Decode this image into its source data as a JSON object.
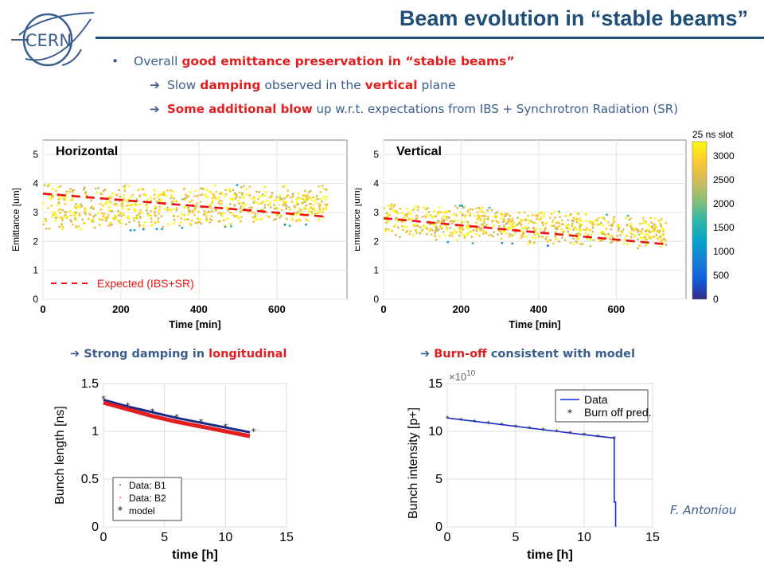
{
  "slide": {
    "title": "Beam evolution in “stable beams”",
    "logo_text": "CERN",
    "author": "F. Antoniou"
  },
  "bullets": {
    "main": {
      "pre": "Overall ",
      "hl": "good emittance preservation in “stable beams”",
      "post": ""
    },
    "sub1": {
      "a": "Slow ",
      "b": "damping",
      "c": " observed in the ",
      "d": "vertical",
      "e": " plane"
    },
    "sub2": {
      "a": "Some additional  blow",
      "b": " up w.r.t. expectations from IBS + Synchrotron Radiation (SR)"
    }
  },
  "captions": {
    "long": {
      "pre": "Strong damping in ",
      "hl": "longitudinal"
    },
    "burn": {
      "hl": "Burn-off",
      "post": " consistent with model"
    }
  },
  "colorbar": {
    "title": "25 ns slot",
    "ticks": [
      "3000",
      "2500",
      "2000",
      "1500",
      "1000",
      "500",
      "0"
    ]
  },
  "chart_data": [
    {
      "type": "scatter",
      "panel_label": "Horizontal",
      "xlabel": "Time [min]",
      "ylabel": "Emittance [um]",
      "xlim": [
        0,
        780
      ],
      "ylim": [
        0,
        5.5
      ],
      "xticks": [
        "0",
        "200",
        "400",
        "600"
      ],
      "yticks": [
        "0",
        "1",
        "2",
        "3",
        "4",
        "5"
      ],
      "grid": true,
      "legend": "bottom-left",
      "legend_entry": "Expected (IBS+SR)",
      "band": {
        "x": [
          0,
          730
        ],
        "low": [
          2.5,
          2.8
        ],
        "high": [
          3.8,
          3.75
        ]
      },
      "series": [
        {
          "name": "Expected (IBS+SR)",
          "x": [
            0,
            730
          ],
          "y": [
            3.65,
            2.85
          ]
        }
      ]
    },
    {
      "type": "scatter",
      "panel_label": "Vertical",
      "xlabel": "Time [min]",
      "ylabel": "Emittance [um]",
      "xlim": [
        0,
        780
      ],
      "ylim": [
        0,
        5.5
      ],
      "xticks": [
        "0",
        "200",
        "400",
        "600"
      ],
      "yticks": [
        "0",
        "1",
        "2",
        "3",
        "4",
        "5"
      ],
      "grid": true,
      "band": {
        "x": [
          0,
          730
        ],
        "low": [
          2.3,
          1.9
        ],
        "high": [
          3.2,
          2.6
        ]
      },
      "series": [
        {
          "name": "",
          "x": [
            0,
            730
          ],
          "y": [
            2.8,
            1.9
          ]
        }
      ]
    },
    {
      "type": "line",
      "xlabel": "time [h]",
      "ylabel": "Bunch length [ns]",
      "xlim": [
        0,
        15
      ],
      "ylim": [
        0,
        1.5
      ],
      "xticks": [
        "0",
        "5",
        "10",
        "15"
      ],
      "yticks": [
        "0",
        "0.5",
        "1",
        "1.5"
      ],
      "grid": true,
      "legend": "bottom-left",
      "series": [
        {
          "name": "Data: B1",
          "x": [
            0,
            2,
            4,
            6,
            8,
            10,
            12
          ],
          "y": [
            1.33,
            1.26,
            1.2,
            1.14,
            1.09,
            1.04,
            0.99
          ]
        },
        {
          "name": "Data: B2",
          "x": [
            0,
            2,
            4,
            6,
            8,
            10,
            12
          ],
          "y": [
            1.3,
            1.23,
            1.16,
            1.1,
            1.05,
            1.0,
            0.95
          ]
        },
        {
          "name": "model",
          "x": [
            0,
            2,
            4,
            6,
            8,
            10,
            12.3
          ],
          "y": [
            1.34,
            1.27,
            1.21,
            1.15,
            1.1,
            1.05,
            1.0
          ]
        }
      ]
    },
    {
      "type": "line",
      "xlabel": "time [h]",
      "ylabel": "Bunch intensity [p+]",
      "multiplier_base": "×10",
      "multiplier_exp": "10",
      "xlim": [
        0,
        15
      ],
      "ylim": [
        0,
        15
      ],
      "xticks": [
        "0",
        "5",
        "10",
        "15"
      ],
      "yticks": [
        "0",
        "5",
        "10",
        "15"
      ],
      "grid": true,
      "legend": "top-right",
      "series": [
        {
          "name": "Data",
          "x": [
            0,
            2,
            4,
            6,
            8,
            10,
            12.2,
            12.2,
            12.3,
            12.3
          ],
          "y": [
            11.4,
            11.05,
            10.7,
            10.35,
            10.0,
            9.65,
            9.3,
            2.6,
            2.6,
            0
          ]
        },
        {
          "name": "Burn off pred.",
          "x": [
            0,
            1,
            2,
            3,
            4,
            5,
            6,
            7,
            8,
            9,
            10,
            11,
            12.2
          ],
          "y": [
            11.4,
            11.22,
            11.05,
            10.87,
            10.7,
            10.52,
            10.35,
            10.17,
            10.0,
            9.82,
            9.65,
            9.47,
            9.28
          ]
        }
      ]
    }
  ]
}
